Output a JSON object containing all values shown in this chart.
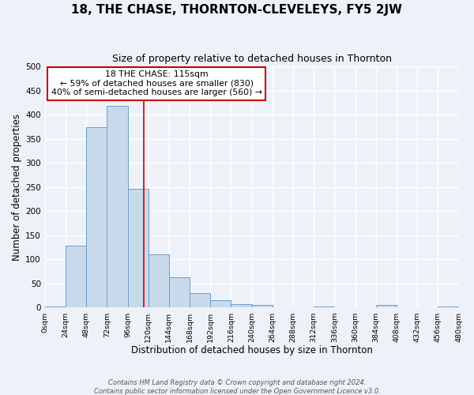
{
  "title": "18, THE CHASE, THORNTON-CLEVELEYS, FY5 2JW",
  "subtitle": "Size of property relative to detached houses in Thornton",
  "xlabel": "Distribution of detached houses by size in Thornton",
  "ylabel": "Number of detached properties",
  "bin_edges": [
    0,
    24,
    48,
    72,
    96,
    120,
    144,
    168,
    192,
    216,
    240,
    264,
    288,
    312,
    336,
    360,
    384,
    408,
    432,
    456,
    480
  ],
  "bar_heights": [
    3,
    128,
    375,
    418,
    246,
    110,
    63,
    30,
    15,
    8,
    5,
    0,
    0,
    3,
    0,
    0,
    5,
    0,
    0,
    3
  ],
  "bar_color": "#c9d9ec",
  "bar_edge_color": "#6b9ec8",
  "property_line_x": 115,
  "property_line_color": "#cc0000",
  "annotation_title": "18 THE CHASE: 115sqm",
  "annotation_line1": "← 59% of detached houses are smaller (830)",
  "annotation_line2": "40% of semi-detached houses are larger (560) →",
  "annotation_box_color": "#cc0000",
  "ylim": [
    0,
    500
  ],
  "yticks": [
    0,
    50,
    100,
    150,
    200,
    250,
    300,
    350,
    400,
    450,
    500
  ],
  "footer_line1": "Contains HM Land Registry data © Crown copyright and database right 2024.",
  "footer_line2": "Contains public sector information licensed under the Open Government Licence v3.0.",
  "bg_color": "#eef2f8",
  "grid_color": "#ffffff",
  "xlim": [
    0,
    480
  ]
}
